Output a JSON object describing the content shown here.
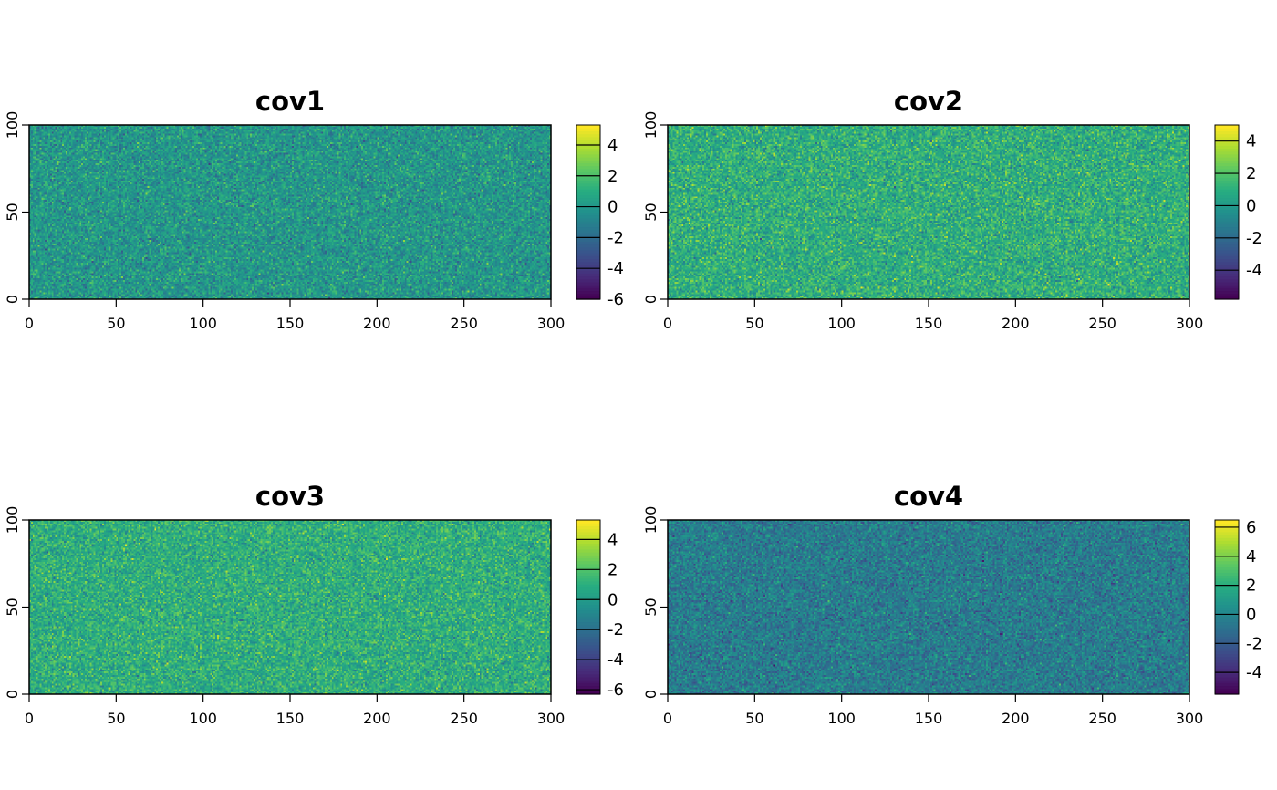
{
  "figure": {
    "palette": [
      "#440154",
      "#472c7a",
      "#3b518b",
      "#2c718e",
      "#21908d",
      "#27ad81",
      "#5cc863",
      "#aadc32",
      "#fde725"
    ],
    "colors": {
      "axis": "#000000",
      "background": "#ffffff"
    }
  },
  "chart_data": [
    {
      "type": "heatmap",
      "title": "cov1",
      "xlim": [
        0,
        300
      ],
      "ylim": [
        0,
        100
      ],
      "x_ticks": [
        "0",
        "50",
        "100",
        "150",
        "200",
        "250",
        "300"
      ],
      "y_ticks": [
        "0",
        "50",
        "100"
      ],
      "legend": {
        "placement": "right",
        "range": [
          -6,
          5.3
        ],
        "ticks": [
          "-6",
          "-4",
          "-2",
          "0",
          "2",
          "4"
        ],
        "tick_values": [
          -6,
          -4,
          -2,
          0,
          2,
          4
        ]
      },
      "distribution": {
        "mean": 0,
        "sd": 1
      }
    },
    {
      "type": "heatmap",
      "title": "cov2",
      "xlim": [
        0,
        300
      ],
      "ylim": [
        0,
        100
      ],
      "x_ticks": [
        "0",
        "50",
        "100",
        "150",
        "200",
        "250",
        "300"
      ],
      "y_ticks": [
        "0",
        "50",
        "100"
      ],
      "legend": {
        "placement": "right",
        "range": [
          -5.8,
          5
        ],
        "ticks": [
          "-4",
          "-2",
          "0",
          "2",
          "4"
        ],
        "tick_values": [
          -4,
          -2,
          0,
          2,
          4
        ]
      },
      "distribution": {
        "mean": 1,
        "sd": 1
      }
    },
    {
      "type": "heatmap",
      "title": "cov3",
      "xlim": [
        0,
        300
      ],
      "ylim": [
        0,
        100
      ],
      "x_ticks": [
        "0",
        "50",
        "100",
        "150",
        "200",
        "250",
        "300"
      ],
      "y_ticks": [
        "0",
        "50",
        "100"
      ],
      "legend": {
        "placement": "right",
        "range": [
          -6.3,
          5.3
        ],
        "ticks": [
          "-6",
          "-4",
          "-2",
          "0",
          "2",
          "4"
        ],
        "tick_values": [
          -6,
          -4,
          -2,
          0,
          2,
          4
        ]
      },
      "distribution": {
        "mean": 1,
        "sd": 1
      }
    },
    {
      "type": "heatmap",
      "title": "cov4",
      "xlim": [
        0,
        300
      ],
      "ylim": [
        0,
        100
      ],
      "x_ticks": [
        "0",
        "50",
        "100",
        "150",
        "200",
        "250",
        "300"
      ],
      "y_ticks": [
        "0",
        "50",
        "100"
      ],
      "legend": {
        "placement": "right",
        "range": [
          -5.5,
          6.5
        ],
        "ticks": [
          "-4",
          "-2",
          "0",
          "2",
          "4",
          "6"
        ],
        "tick_values": [
          -4,
          -2,
          0,
          2,
          4,
          6
        ]
      },
      "distribution": {
        "mean": -0.5,
        "sd": 1
      }
    }
  ]
}
